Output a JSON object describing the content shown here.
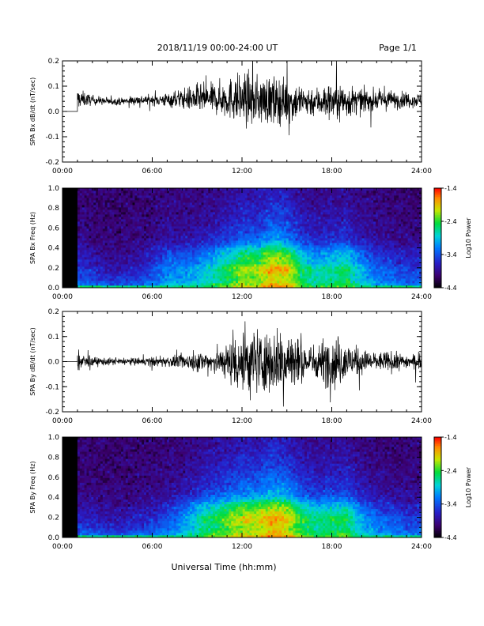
{
  "header": {
    "title": "2018/11/19  00:00-24:00 UT",
    "page": "Page 1/1"
  },
  "footer": {
    "xlabel": "Universal Time (hh:mm)"
  },
  "chart_data": [
    {
      "type": "line",
      "ylabel": "SPA Bx dB/dt (nT/sec)",
      "xlim": [
        0,
        24
      ],
      "ylim": [
        -0.2,
        0.2
      ],
      "x_ticks": [
        "00:00",
        "06:00",
        "12:00",
        "18:00",
        "24:00"
      ],
      "y_ticks": [
        "-0.2",
        "-0.1",
        "0.0",
        "0.1",
        "0.2"
      ],
      "data_start_hour": 1.0,
      "envelope": {
        "hours": [
          1,
          2,
          3,
          4,
          5,
          6,
          7,
          8,
          9,
          10,
          11,
          12,
          13,
          14,
          15,
          16,
          17,
          18,
          19,
          20,
          21,
          22,
          23,
          24
        ],
        "baseline": [
          0.05,
          0.045,
          0.04,
          0.04,
          0.045,
          0.045,
          0.045,
          0.05,
          0.05,
          0.05,
          0.05,
          0.05,
          0.045,
          0.045,
          0.04,
          0.04,
          0.04,
          0.04,
          0.04,
          0.04,
          0.045,
          0.045,
          0.045,
          0.045
        ],
        "amplitude": [
          0.04,
          0.02,
          0.015,
          0.015,
          0.02,
          0.02,
          0.03,
          0.04,
          0.06,
          0.06,
          0.08,
          0.11,
          0.1,
          0.1,
          0.09,
          0.07,
          0.06,
          0.08,
          0.07,
          0.05,
          0.04,
          0.04,
          0.03,
          0.03
        ]
      }
    },
    {
      "type": "heatmap",
      "ylabel": "SPA Bx Freq (Hz)",
      "xlim": [
        0,
        24
      ],
      "ylim": [
        0.0,
        1.0
      ],
      "x_ticks": [
        "00:00",
        "06:00",
        "12:00",
        "18:00",
        "24:00"
      ],
      "y_ticks": [
        "0.0",
        "0.2",
        "0.4",
        "0.6",
        "0.8",
        "1.0"
      ],
      "data_gap_hours": [
        0,
        1
      ],
      "colorbar": {
        "label": "Log10 Power",
        "ticks": [
          "-1.4",
          "-2.4",
          "-3.4",
          "-4.4"
        ],
        "range": [
          -4.4,
          -1.4
        ]
      },
      "activity": {
        "hours": [
          1,
          2,
          3,
          4,
          5,
          6,
          7,
          8,
          9,
          10,
          11,
          12,
          13,
          14,
          15,
          16,
          17,
          18,
          19,
          20,
          21,
          22,
          23,
          24
        ],
        "level": [
          0.15,
          0.1,
          0.05,
          0.05,
          0.1,
          0.15,
          0.3,
          0.3,
          0.35,
          0.45,
          0.55,
          0.7,
          0.7,
          0.85,
          0.8,
          0.55,
          0.45,
          0.5,
          0.55,
          0.35,
          0.25,
          0.2,
          0.15,
          0.15
        ],
        "hot_frequencies_hz": [
          0.2,
          0.3,
          0.35
        ]
      }
    },
    {
      "type": "line",
      "ylabel": "SPA By dB/dt (nT/sec)",
      "xlim": [
        0,
        24
      ],
      "ylim": [
        -0.2,
        0.2
      ],
      "x_ticks": [
        "00:00",
        "06:00",
        "12:00",
        "18:00",
        "24:00"
      ],
      "y_ticks": [
        "-0.2",
        "-0.1",
        "0.0",
        "0.1",
        "0.2"
      ],
      "data_start_hour": 1.0,
      "envelope": {
        "hours": [
          1,
          2,
          3,
          4,
          5,
          6,
          7,
          8,
          9,
          10,
          11,
          12,
          13,
          14,
          15,
          16,
          17,
          18,
          19,
          20,
          21,
          22,
          23,
          24
        ],
        "baseline": [
          0,
          0,
          0,
          0,
          0,
          0,
          0,
          0,
          0,
          0,
          0,
          0,
          0,
          0,
          0,
          0,
          0,
          0,
          0,
          0,
          0,
          0,
          0,
          0
        ],
        "amplitude": [
          0.04,
          0.02,
          0.015,
          0.015,
          0.015,
          0.02,
          0.02,
          0.03,
          0.04,
          0.05,
          0.07,
          0.16,
          0.13,
          0.12,
          0.16,
          0.08,
          0.07,
          0.12,
          0.08,
          0.05,
          0.04,
          0.04,
          0.03,
          0.03
        ]
      }
    },
    {
      "type": "heatmap",
      "ylabel": "SPA By Freq (Hz)",
      "xlim": [
        0,
        24
      ],
      "ylim": [
        0.0,
        1.0
      ],
      "x_ticks": [
        "00:00",
        "06:00",
        "12:00",
        "18:00",
        "24:00"
      ],
      "y_ticks": [
        "0.0",
        "0.2",
        "0.4",
        "0.6",
        "0.8",
        "1.0"
      ],
      "data_gap_hours": [
        0,
        1
      ],
      "colorbar": {
        "label": "Log10 Power",
        "ticks": [
          "-1.4",
          "-2.4",
          "-3.4",
          "-4.4"
        ],
        "range": [
          -4.4,
          -1.4
        ]
      },
      "activity": {
        "hours": [
          1,
          2,
          3,
          4,
          5,
          6,
          7,
          8,
          9,
          10,
          11,
          12,
          13,
          14,
          15,
          16,
          17,
          18,
          19,
          20,
          21,
          22,
          23,
          24
        ],
        "level": [
          0.1,
          0.08,
          0.05,
          0.05,
          0.08,
          0.12,
          0.2,
          0.3,
          0.45,
          0.55,
          0.65,
          0.75,
          0.75,
          0.85,
          0.8,
          0.6,
          0.5,
          0.55,
          0.55,
          0.35,
          0.25,
          0.2,
          0.15,
          0.15
        ],
        "hot_frequencies_hz": [
          0.2,
          0.25,
          0.3
        ]
      }
    }
  ]
}
